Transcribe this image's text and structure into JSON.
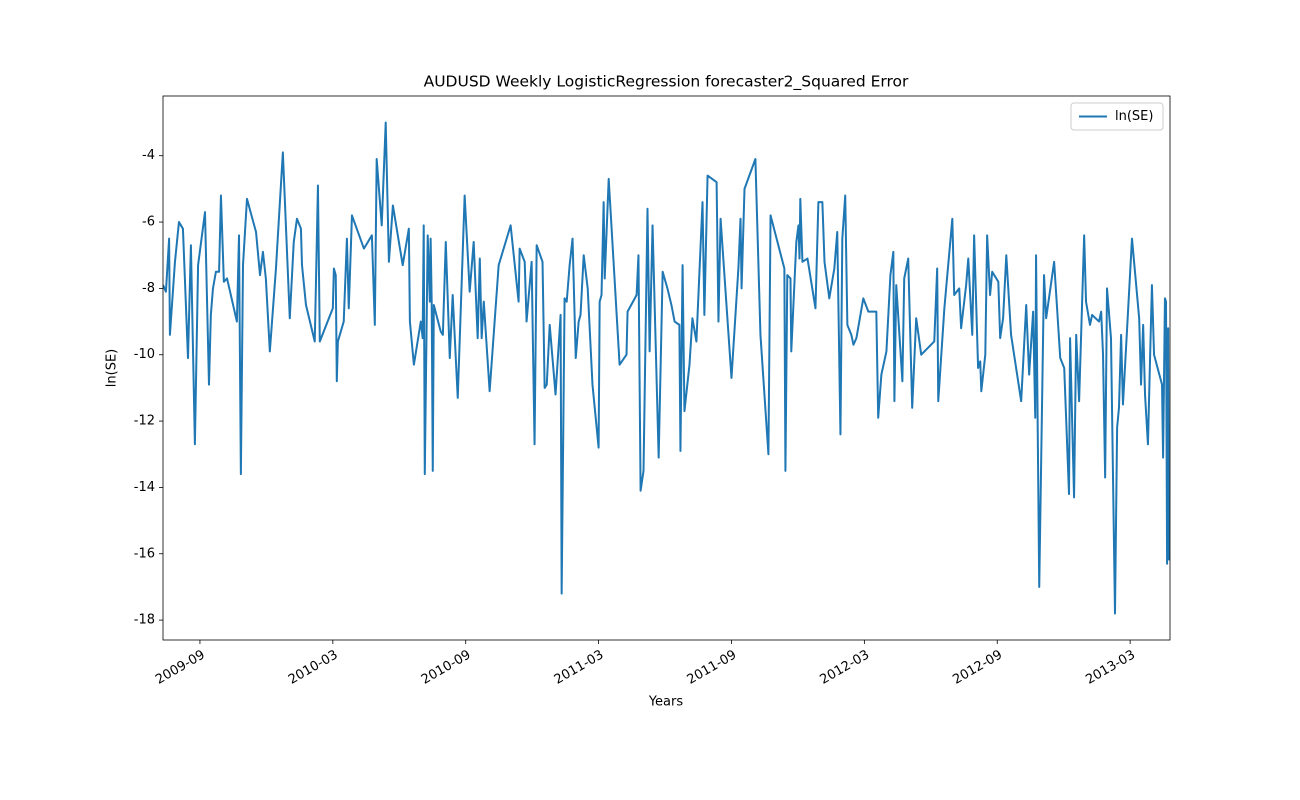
{
  "chart_data": {
    "type": "line",
    "title": "AUDUSD Weekly LogisticRegression forecaster2_Squared Error",
    "x_label": "Years",
    "y_label": "ln(SE)",
    "x": [
      2009.528,
      2009.539,
      2009.551,
      2009.554,
      2009.573,
      2009.588,
      2009.603,
      2009.622,
      2009.633,
      2009.648,
      2009.66,
      2009.686,
      2009.701,
      2009.708,
      2009.716,
      2009.727,
      2009.739,
      2009.746,
      2009.757,
      2009.769,
      2009.806,
      2009.814,
      2009.817,
      2009.821,
      2009.829,
      2009.844,
      2009.878,
      2009.893,
      2009.904,
      2009.915,
      2009.93,
      2009.953,
      2009.979,
      2010.005,
      2010.02,
      2010.032,
      2010.047,
      2010.051,
      2010.066,
      2010.099,
      2010.111,
      2010.118,
      2010.167,
      2010.171,
      2010.178,
      2010.182,
      2010.186,
      2010.208,
      2010.22,
      2010.227,
      2010.239,
      2010.284,
      2010.314,
      2010.325,
      2010.332,
      2010.351,
      2010.366,
      2010.378,
      2010.393,
      2010.43,
      2010.453,
      2010.457,
      2010.472,
      2010.498,
      2010.505,
      2010.509,
      2010.513,
      2010.524,
      2010.532,
      2010.535,
      2010.539,
      2010.543,
      2010.547,
      2010.573,
      2010.581,
      2010.592,
      2010.607,
      2010.618,
      2010.637,
      2010.663,
      2010.682,
      2010.697,
      2010.712,
      2010.72,
      2010.727,
      2010.735,
      2010.757,
      2010.791,
      2010.836,
      2010.866,
      2010.87,
      2010.889,
      2010.896,
      2010.915,
      2010.926,
      2010.934,
      2010.956,
      2010.964,
      2010.972,
      2010.983,
      2011.005,
      2011.024,
      2011.028,
      2011.039,
      2011.047,
      2011.058,
      2011.069,
      2011.081,
      2011.092,
      2011.099,
      2011.111,
      2011.126,
      2011.144,
      2011.167,
      2011.171,
      2011.178,
      2011.186,
      2011.19,
      2011.205,
      2011.246,
      2011.272,
      2011.276,
      2011.31,
      2011.317,
      2011.325,
      2011.336,
      2011.351,
      2011.359,
      2011.37,
      2011.393,
      2011.408,
      2011.426,
      2011.441,
      2011.453,
      2011.471,
      2011.475,
      2011.483,
      2011.49,
      2011.509,
      2011.52,
      2011.535,
      2011.558,
      2011.565,
      2011.577,
      2011.611,
      2011.618,
      2011.626,
      2011.667,
      2011.693,
      2011.701,
      2011.705,
      2011.716,
      2011.757,
      2011.776,
      2011.806,
      2011.814,
      2011.866,
      2011.87,
      2011.877,
      2011.889,
      2011.892,
      2011.911,
      2011.919,
      2011.923,
      2011.926,
      2011.934,
      2011.953,
      2011.983,
      2011.994,
      2012.009,
      2012.017,
      2012.035,
      2012.054,
      2012.065,
      2012.077,
      2012.084,
      2012.095,
      2012.103,
      2012.118,
      2012.126,
      2012.137,
      2012.163,
      2012.182,
      2012.212,
      2012.219,
      2012.231,
      2012.25,
      2012.265,
      2012.276,
      2012.28,
      2012.287,
      2012.31,
      2012.317,
      2012.332,
      2012.347,
      2012.362,
      2012.381,
      2012.43,
      2012.441,
      2012.445,
      2012.468,
      2012.498,
      2012.505,
      2012.524,
      2012.531,
      2012.55,
      2012.558,
      2012.573,
      2012.58,
      2012.595,
      2012.603,
      2012.607,
      2012.622,
      2012.629,
      2012.64,
      2012.648,
      2012.671,
      2012.678,
      2012.689,
      2012.701,
      2012.719,
      2012.757,
      2012.776,
      2012.787,
      2012.802,
      2012.81,
      2012.813,
      2012.825,
      2012.843,
      2012.851,
      2012.881,
      2012.904,
      2012.919,
      2012.937,
      2012.941,
      2012.956,
      2012.964,
      2012.975,
      2012.994,
      2013.001,
      2013.016,
      2013.024,
      2013.05,
      2013.058,
      2013.065,
      2013.073,
      2013.08,
      2013.095,
      2013.11,
      2013.118,
      2013.125,
      2013.133,
      2013.14,
      2013.174,
      2013.201,
      2013.208,
      2013.216,
      2013.223,
      2013.234,
      2013.242,
      2013.249,
      2013.257,
      2013.287,
      2013.291,
      2013.298,
      2013.302,
      2013.306,
      2013.31,
      2013.313
    ],
    "series": [
      {
        "name": "ln(SE)",
        "color": "#1f77b4",
        "values": [
          -7.9,
          -8.1,
          -6.5,
          -9.4,
          -7.2,
          -6.0,
          -6.2,
          -10.1,
          -6.7,
          -12.7,
          -7.3,
          -5.7,
          -10.9,
          -8.8,
          -8.0,
          -7.5,
          -7.5,
          -5.2,
          -7.8,
          -7.7,
          -9.0,
          -6.4,
          -9.6,
          -13.6,
          -7.3,
          -5.3,
          -6.3,
          -7.6,
          -6.9,
          -7.7,
          -9.9,
          -7.4,
          -3.9,
          -8.9,
          -6.6,
          -5.9,
          -6.2,
          -7.3,
          -8.5,
          -9.6,
          -4.9,
          -9.6,
          -8.6,
          -7.4,
          -7.6,
          -10.8,
          -9.6,
          -9.0,
          -6.5,
          -8.6,
          -5.8,
          -6.8,
          -6.4,
          -9.1,
          -4.1,
          -6.1,
          -3.0,
          -7.2,
          -5.5,
          -7.3,
          -6.2,
          -9.0,
          -10.3,
          -9.0,
          -9.5,
          -6.1,
          -13.6,
          -6.4,
          -8.4,
          -6.5,
          -8.4,
          -13.5,
          -8.5,
          -9.3,
          -9.4,
          -6.6,
          -10.1,
          -8.2,
          -11.3,
          -5.2,
          -8.1,
          -6.6,
          -9.5,
          -7.1,
          -9.5,
          -8.4,
          -11.1,
          -7.3,
          -6.1,
          -8.4,
          -6.8,
          -7.2,
          -9.0,
          -7.2,
          -12.7,
          -6.7,
          -7.2,
          -11.0,
          -10.9,
          -9.1,
          -11.2,
          -8.8,
          -17.2,
          -8.3,
          -8.4,
          -7.3,
          -6.5,
          -10.1,
          -9.0,
          -8.8,
          -7.0,
          -8.0,
          -10.9,
          -12.8,
          -8.4,
          -8.2,
          -5.4,
          -7.7,
          -4.7,
          -10.3,
          -10.0,
          -8.7,
          -8.2,
          -7.0,
          -14.1,
          -13.5,
          -5.6,
          -9.9,
          -6.1,
          -13.1,
          -7.5,
          -8.0,
          -8.5,
          -9.0,
          -9.1,
          -12.9,
          -7.3,
          -11.7,
          -10.3,
          -8.9,
          -9.6,
          -5.4,
          -8.8,
          -4.6,
          -4.8,
          -9.0,
          -5.9,
          -10.7,
          -7.4,
          -5.9,
          -8.0,
          -5.0,
          -4.1,
          -9.4,
          -13.0,
          -5.8,
          -7.4,
          -13.5,
          -7.6,
          -7.7,
          -9.9,
          -6.6,
          -6.1,
          -7.1,
          -5.3,
          -7.2,
          -7.1,
          -8.6,
          -5.4,
          -5.4,
          -7.2,
          -8.3,
          -7.4,
          -6.3,
          -12.4,
          -6.5,
          -5.2,
          -9.1,
          -9.4,
          -9.7,
          -9.5,
          -8.3,
          -8.7,
          -8.7,
          -11.9,
          -10.6,
          -9.9,
          -7.6,
          -6.9,
          -11.4,
          -7.9,
          -10.8,
          -7.7,
          -7.1,
          -11.6,
          -8.9,
          -10.0,
          -9.6,
          -7.4,
          -11.4,
          -8.6,
          -5.9,
          -8.2,
          -8.0,
          -9.2,
          -7.9,
          -7.1,
          -9.4,
          -6.4,
          -10.4,
          -10.2,
          -11.1,
          -10.0,
          -6.4,
          -8.2,
          -7.5,
          -7.8,
          -9.5,
          -8.9,
          -7.0,
          -9.4,
          -11.4,
          -8.5,
          -10.6,
          -8.7,
          -11.9,
          -7.0,
          -17.0,
          -7.6,
          -8.9,
          -7.2,
          -10.1,
          -10.4,
          -14.2,
          -9.5,
          -14.3,
          -9.4,
          -11.4,
          -6.4,
          -8.4,
          -9.1,
          -8.8,
          -9.0,
          -8.7,
          -10.0,
          -13.7,
          -8.0,
          -9.5,
          -17.8,
          -12.2,
          -11.6,
          -9.4,
          -11.5,
          -6.5,
          -8.9,
          -10.9,
          -9.1,
          -11.2,
          -12.7,
          -10.1,
          -7.9,
          -10.0,
          -10.9,
          -13.1,
          -8.3,
          -8.4,
          -16.3,
          -9.2,
          -16.2
        ]
      }
    ],
    "xlim": [
      2009.528,
      2013.317
    ],
    "xticks": [
      {
        "value": 2009.667,
        "label": "2009-09"
      },
      {
        "value": 2010.167,
        "label": "2010-03"
      },
      {
        "value": 2010.667,
        "label": "2010-09"
      },
      {
        "value": 2011.167,
        "label": "2011-03"
      },
      {
        "value": 2011.667,
        "label": "2011-09"
      },
      {
        "value": 2012.167,
        "label": "2012-03"
      },
      {
        "value": 2012.667,
        "label": "2012-09"
      },
      {
        "value": 2013.167,
        "label": "2013-03"
      }
    ],
    "ylim": [
      -18.6,
      -2.2
    ],
    "yticks": [
      -18,
      -16,
      -14,
      -12,
      -10,
      -8,
      -6,
      -4
    ],
    "legend": "upper right",
    "grid": false
  }
}
